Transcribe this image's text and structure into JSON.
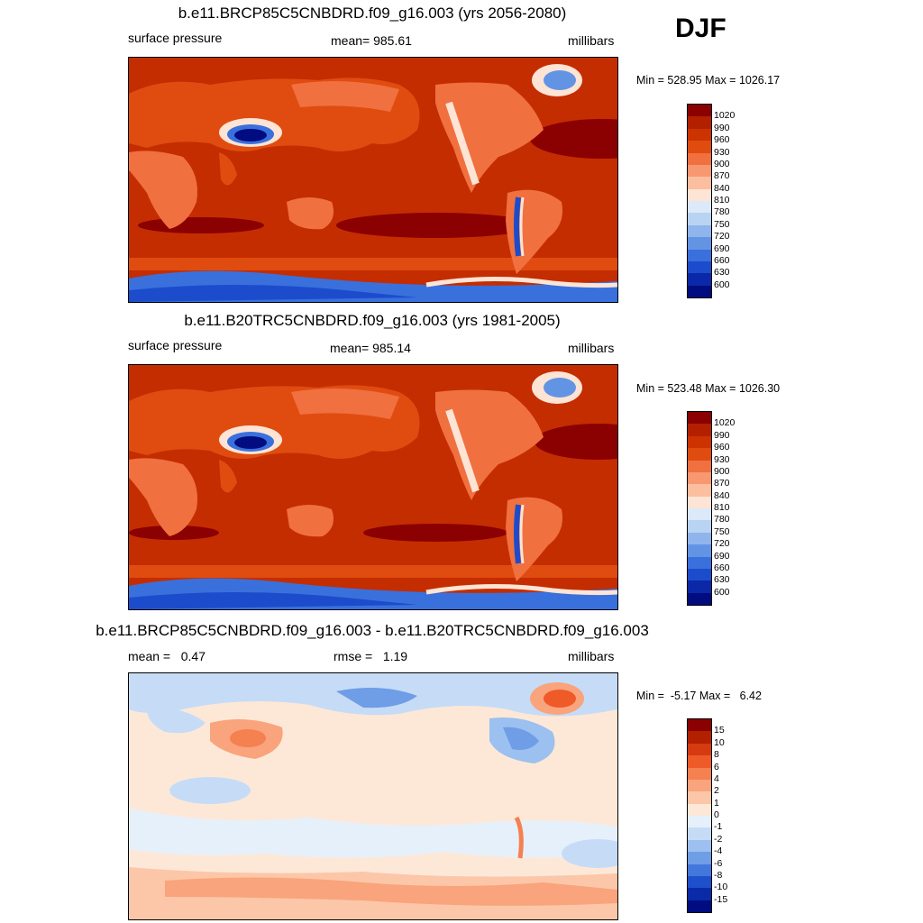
{
  "season": "DJF",
  "panels": [
    {
      "title": "b.e11.BRCP85C5CNBDRD.f09_g16.003 (yrs 2056-2080)",
      "left_label": "surface pressure",
      "mid_label": "mean= 985.61",
      "right_label": "millibars",
      "minmax": "Min = 528.95 Max = 1026.17",
      "colorbar": {
        "labels": [
          "1020",
          "990",
          "960",
          "930",
          "900",
          "870",
          "840",
          "810",
          "780",
          "750",
          "720",
          "690",
          "660",
          "630",
          "600"
        ],
        "colors": [
          "#8b0000",
          "#b22000",
          "#cc3300",
          "#e04c10",
          "#f07040",
          "#f89870",
          "#fbbfa0",
          "#fde4d4",
          "#dce9f8",
          "#b9d3f3",
          "#8fb5ec",
          "#6394e4",
          "#3a70dc",
          "#1c4ccc",
          "#0a28a8",
          "#000c80"
        ]
      }
    },
    {
      "title": "b.e11.B20TRC5CNBDRD.f09_g16.003 (yrs 1981-2005)",
      "left_label": "surface pressure",
      "mid_label": "mean= 985.14",
      "right_label": "millibars",
      "minmax": "Min = 523.48 Max = 1026.30",
      "colorbar": {
        "labels": [
          "1020",
          "990",
          "960",
          "930",
          "900",
          "870",
          "840",
          "810",
          "780",
          "750",
          "720",
          "690",
          "660",
          "630",
          "600"
        ],
        "colors": [
          "#8b0000",
          "#b22000",
          "#cc3300",
          "#e04c10",
          "#f07040",
          "#f89870",
          "#fbbfa0",
          "#fde4d4",
          "#dce9f8",
          "#b9d3f3",
          "#8fb5ec",
          "#6394e4",
          "#3a70dc",
          "#1c4ccc",
          "#0a28a8",
          "#000c80"
        ]
      }
    },
    {
      "title": "b.e11.BRCP85C5CNBDRD.f09_g16.003 - b.e11.B20TRC5CNBDRD.f09_g16.003",
      "left_label": "mean =   0.47",
      "mid_label": "rmse =   1.19",
      "right_label": "millibars",
      "minmax": "Min =  -5.17 Max =   6.42",
      "colorbar": {
        "labels": [
          "15",
          "10",
          "8",
          "6",
          "4",
          "2",
          "1",
          "0",
          "-1",
          "-2",
          "-4",
          "-6",
          "-8",
          "-10",
          "-15"
        ],
        "colors": [
          "#8b0000",
          "#b22000",
          "#d63a10",
          "#ee5a28",
          "#f58050",
          "#f9a47c",
          "#fcc7a8",
          "#fde8d8",
          "#e6f0fb",
          "#c6dcf6",
          "#9cc0ef",
          "#6f9de6",
          "#4377dc",
          "#1f50cc",
          "#0a2aa8",
          "#000c80"
        ]
      }
    }
  ]
}
